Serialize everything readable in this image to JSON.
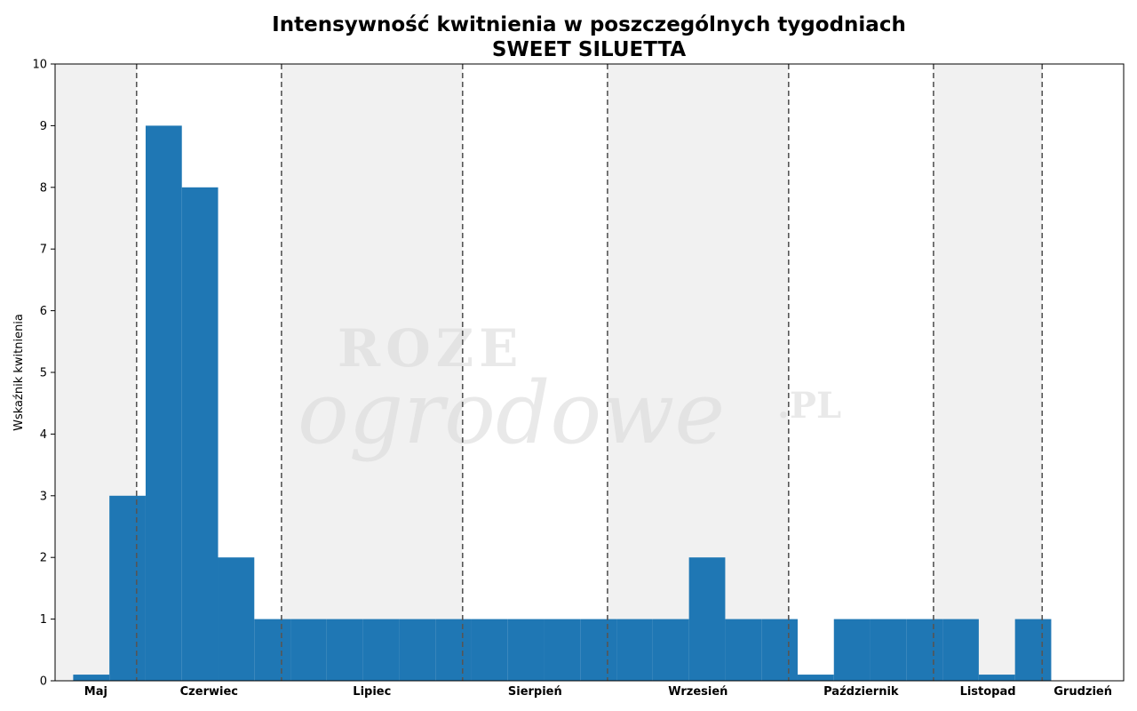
{
  "chart_data": {
    "type": "bar",
    "title": [
      "Intensywność kwitnienia w poszczególnych tygodniach",
      "SWEET SILUETTA"
    ],
    "xlabel": "",
    "ylabel": "Wskaźnik kwitnienia",
    "ylim": [
      0,
      10
    ],
    "yticks": [
      0,
      1,
      2,
      3,
      4,
      5,
      6,
      7,
      8,
      9,
      10
    ],
    "xlim": [
      0,
      29.5
    ],
    "grid": false,
    "bar_color": "#1f77b4",
    "week_positions": [
      1,
      2,
      3,
      4,
      5,
      6,
      7,
      8,
      9,
      10,
      11,
      12,
      13,
      14,
      15,
      16,
      17,
      18,
      19,
      20,
      21,
      22,
      23,
      24,
      25,
      26,
      27,
      28
    ],
    "values": [
      0.1,
      3,
      9,
      8,
      2,
      1,
      1,
      1,
      1,
      1,
      1,
      1,
      1,
      1,
      1,
      1,
      1,
      2,
      1,
      1,
      0.1,
      1,
      1,
      1,
      1,
      0.1,
      1,
      0
    ],
    "months": [
      {
        "name": "Maj",
        "start": 0,
        "end": 2.25
      },
      {
        "name": "Czerwiec",
        "start": 2.25,
        "end": 6.25
      },
      {
        "name": "Lipiec",
        "start": 6.25,
        "end": 11.25
      },
      {
        "name": "Sierpień",
        "start": 11.25,
        "end": 15.25
      },
      {
        "name": "Wrzesień",
        "start": 15.25,
        "end": 20.25
      },
      {
        "name": "Październik",
        "start": 20.25,
        "end": 24.25
      },
      {
        "name": "Listopad",
        "start": 24.25,
        "end": 27.25
      },
      {
        "name": "Grudzień",
        "start": 27.25,
        "end": 29.5
      }
    ],
    "month_band_colors": [
      "#f1f1f1",
      "#ffffff"
    ],
    "separator_color": "#555555"
  },
  "watermark": {
    "line1": "ROZE",
    "line2": "ogrodowe",
    "suffix": ".PL"
  }
}
